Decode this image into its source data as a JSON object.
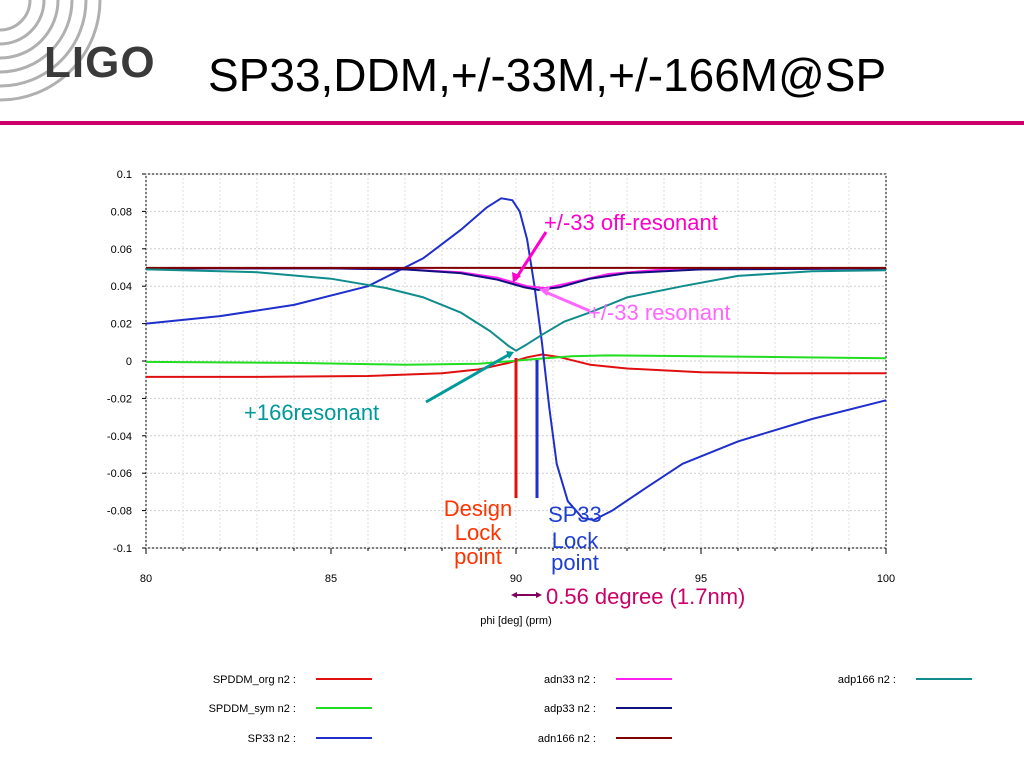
{
  "slide": {
    "logo": "LIGO",
    "title": "SP33,DDM,+/-33M,+/-166M@SP"
  },
  "annotations": {
    "off_resonant": "+/-33 off-resonant",
    "resonant": "+/-33 resonant",
    "resonant166": "+166resonant",
    "design_lock": [
      "Design",
      "Lock",
      "point"
    ],
    "sp33_lock": [
      "SP33",
      "Lock",
      "point"
    ],
    "offset": "0.56 degree (1.7nm)"
  },
  "colors": {
    "title_rule": "#cc0066",
    "off_resonant_text": "#ff00cc",
    "resonant_text": "#ff66ff",
    "resonant166_text": "#009999",
    "design_text": "#ff3300",
    "sp33_text": "#1f3fd0",
    "offset_text": "#cc0066"
  },
  "chart_data": {
    "type": "line",
    "xlabel": "phi [deg] (prm)",
    "ylabel": "",
    "xlim": [
      80,
      100
    ],
    "ylim": [
      -0.1,
      0.1
    ],
    "x_ticks": [
      80,
      85,
      90,
      95,
      100
    ],
    "y_ticks": [
      0.1,
      0.08,
      0.06,
      0.04,
      0.02,
      0,
      -0.02,
      -0.04,
      -0.06,
      -0.08,
      -0.1
    ],
    "grid": true,
    "legend_position": "bottom",
    "series": [
      {
        "name": "SPDDM_org n2 :",
        "color": "#e01010",
        "points": [
          [
            80,
            -0.0085
          ],
          [
            83,
            -0.0085
          ],
          [
            86,
            -0.008
          ],
          [
            88,
            -0.0065
          ],
          [
            89,
            -0.0045
          ],
          [
            89.8,
            -0.001
          ],
          [
            90.3,
            0.002
          ],
          [
            90.7,
            0.0035
          ],
          [
            91.2,
            0.002
          ],
          [
            92,
            -0.002
          ],
          [
            93,
            -0.004
          ],
          [
            95,
            -0.006
          ],
          [
            97,
            -0.0065
          ],
          [
            100,
            -0.0065
          ]
        ]
      },
      {
        "name": "SPDDM_sym n2 :",
        "color": "#22dd22",
        "points": [
          [
            80,
            -0.0005
          ],
          [
            84,
            -0.001
          ],
          [
            87,
            -0.002
          ],
          [
            89,
            -0.0015
          ],
          [
            90.5,
            0.001
          ],
          [
            91.5,
            0.0025
          ],
          [
            92.5,
            0.003
          ],
          [
            95,
            0.0025
          ],
          [
            100,
            0.0015
          ]
        ]
      },
      {
        "name": "SP33 n2 :",
        "color": "#1f2fcc",
        "points": [
          [
            80,
            0.02
          ],
          [
            82,
            0.024
          ],
          [
            84,
            0.03
          ],
          [
            86,
            0.04
          ],
          [
            87.5,
            0.055
          ],
          [
            88.5,
            0.07
          ],
          [
            89.2,
            0.082
          ],
          [
            89.6,
            0.087
          ],
          [
            89.9,
            0.086
          ],
          [
            90.1,
            0.08
          ],
          [
            90.3,
            0.065
          ],
          [
            90.5,
            0.04
          ],
          [
            90.7,
            0.01
          ],
          [
            90.9,
            -0.025
          ],
          [
            91.1,
            -0.055
          ],
          [
            91.4,
            -0.075
          ],
          [
            91.8,
            -0.084
          ],
          [
            92.1,
            -0.085
          ],
          [
            92.6,
            -0.08
          ],
          [
            93.5,
            -0.068
          ],
          [
            94.5,
            -0.055
          ],
          [
            96,
            -0.043
          ],
          [
            98,
            -0.031
          ],
          [
            100,
            -0.021
          ]
        ]
      },
      {
        "name": "adn33 n2 :",
        "color": "#ff22ee",
        "points": [
          [
            80,
            0.0495
          ],
          [
            85,
            0.0495
          ],
          [
            87,
            0.049
          ],
          [
            88.5,
            0.0475
          ],
          [
            89.5,
            0.0445
          ],
          [
            90.3,
            0.04
          ],
          [
            90.8,
            0.039
          ],
          [
            91.5,
            0.042
          ],
          [
            92.5,
            0.0465
          ],
          [
            94,
            0.049
          ],
          [
            100,
            0.0495
          ]
        ]
      },
      {
        "name": "adp33 n2 :",
        "color": "#101080",
        "points": [
          [
            80,
            0.0495
          ],
          [
            85,
            0.0495
          ],
          [
            87,
            0.049
          ],
          [
            88.5,
            0.047
          ],
          [
            89.5,
            0.0435
          ],
          [
            90.2,
            0.0395
          ],
          [
            90.6,
            0.038
          ],
          [
            91.2,
            0.0395
          ],
          [
            92,
            0.044
          ],
          [
            93,
            0.047
          ],
          [
            95,
            0.049
          ],
          [
            100,
            0.0495
          ]
        ]
      },
      {
        "name": "adn166 n2 :",
        "color": "#800000",
        "points": [
          [
            80,
            0.0498
          ],
          [
            100,
            0.0498
          ]
        ]
      },
      {
        "name": "adp166 n2 :",
        "color": "#108c8c",
        "points": [
          [
            80,
            0.049
          ],
          [
            83,
            0.0475
          ],
          [
            85,
            0.044
          ],
          [
            86.5,
            0.039
          ],
          [
            87.5,
            0.034
          ],
          [
            88.5,
            0.026
          ],
          [
            89.3,
            0.016
          ],
          [
            89.8,
            0.008
          ],
          [
            90,
            0.0055
          ],
          [
            90.3,
            0.009
          ],
          [
            90.7,
            0.014
          ],
          [
            91.3,
            0.021
          ],
          [
            92,
            0.026
          ],
          [
            93,
            0.034
          ],
          [
            94.5,
            0.04
          ],
          [
            96,
            0.0455
          ],
          [
            98,
            0.048
          ],
          [
            100,
            0.0485
          ]
        ]
      }
    ]
  }
}
